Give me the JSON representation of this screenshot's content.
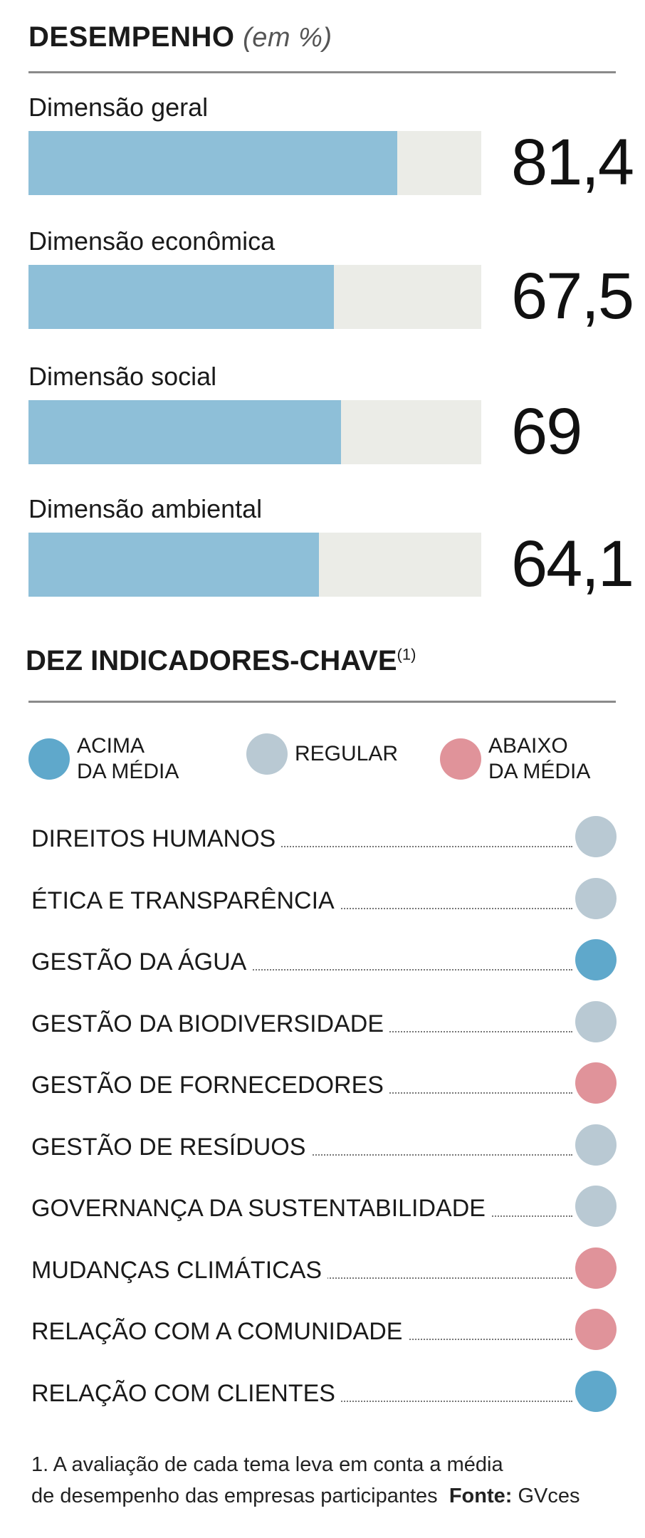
{
  "header": {
    "title": "DESEMPENHO",
    "unit": "(em %)"
  },
  "chart_data": {
    "type": "bar",
    "title": "DESEMPENHO (em %)",
    "orientation": "horizontal",
    "xlim": [
      0,
      100
    ],
    "categories": [
      "Dimensão geral",
      "Dimensão econômica",
      "Dimensão social",
      "Dimensão ambiental"
    ],
    "values": [
      81.4,
      67.5,
      69,
      64.1
    ],
    "value_labels": [
      "81,4",
      "67,5",
      "69",
      "64,1"
    ],
    "colors": {
      "fill": "#8ebfd8",
      "track": "#ebece7"
    }
  },
  "indicators": {
    "title": "DEZ INDICADORES-CHAVE",
    "title_note": "(1)",
    "legend": [
      {
        "key": "acima",
        "line1": "ACIMA",
        "line2": "DA MÉDIA",
        "color": "#5fa8cb"
      },
      {
        "key": "regular",
        "line1": "REGULAR",
        "line2": "",
        "color": "#b9c9d3"
      },
      {
        "key": "abaixo",
        "line1": "ABAIXO",
        "line2": "DA MÉDIA",
        "color": "#e0939a"
      }
    ],
    "items": [
      {
        "label": "DIREITOS HUMANOS",
        "status": "regular",
        "color": "#b9c9d3"
      },
      {
        "label": "ÉTICA E TRANSPARÊNCIA",
        "status": "regular",
        "color": "#b9c9d3"
      },
      {
        "label": "GESTÃO DA ÁGUA",
        "status": "acima",
        "color": "#5fa8cb"
      },
      {
        "label": "GESTÃO DA BIODIVERSIDADE",
        "status": "regular",
        "color": "#b9c9d3"
      },
      {
        "label": "GESTÃO DE FORNECEDORES",
        "status": "abaixo",
        "color": "#e0939a"
      },
      {
        "label": "GESTÃO DE RESÍDUOS",
        "status": "regular",
        "color": "#b9c9d3"
      },
      {
        "label": "GOVERNANÇA DA SUSTENTABILIDADE",
        "status": "regular",
        "color": "#b9c9d3"
      },
      {
        "label": "MUDANÇAS CLIMÁTICAS",
        "status": "abaixo",
        "color": "#e0939a"
      },
      {
        "label": "RELAÇÃO COM A COMUNIDADE",
        "status": "abaixo",
        "color": "#e0939a"
      },
      {
        "label": "RELAÇÃO COM CLIENTES",
        "status": "acima",
        "color": "#5fa8cb"
      }
    ]
  },
  "footnote": {
    "line1": "1. A avaliação de cada tema leva em conta a média",
    "line2": "de desempenho das empresas participantes",
    "source_label": "Fonte:",
    "source": "GVces"
  }
}
